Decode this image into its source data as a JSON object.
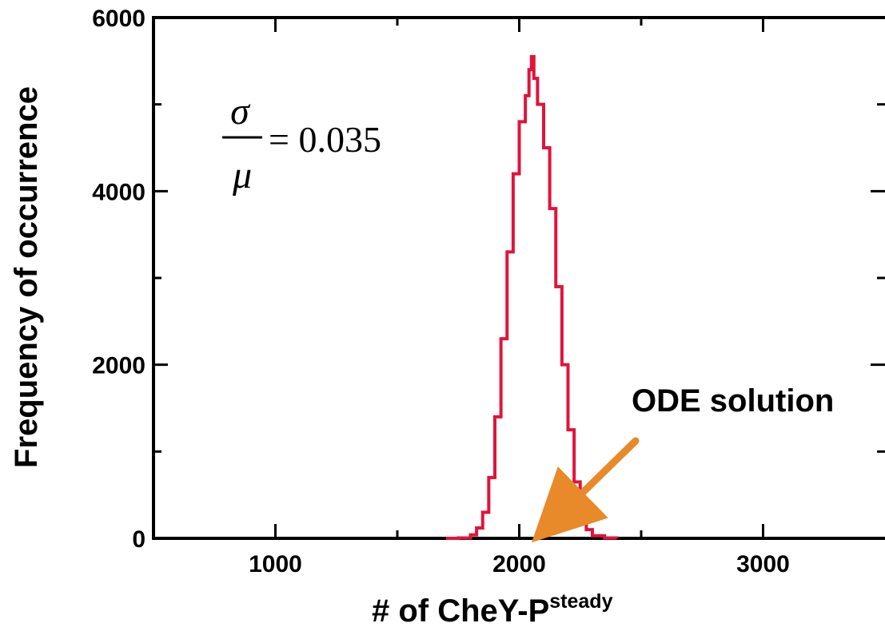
{
  "chart_data": {
    "type": "line",
    "step": true,
    "xlabel": "# of CheY-P",
    "xlabel_superscript": "steady",
    "ylabel": "Frequency of occurrence",
    "xlim": [
      500,
      3500
    ],
    "ylim": [
      0,
      6000
    ],
    "x_ticks": [
      1000,
      2000,
      3000
    ],
    "x_minor_ticks": [
      1500,
      2500
    ],
    "y_ticks": [
      0,
      2000,
      4000,
      6000
    ],
    "y_minor_ticks": [
      1000,
      3000,
      5000
    ],
    "grid": false,
    "series": [
      {
        "color": "#e0143c",
        "x": [
          1700,
          1750,
          1800,
          1825,
          1850,
          1875,
          1900,
          1925,
          1950,
          1975,
          2000,
          2025,
          2040,
          2050,
          2060,
          2075,
          2100,
          2125,
          2150,
          2175,
          2200,
          2225,
          2250,
          2275,
          2300,
          2350,
          2400
        ],
        "values": [
          0,
          5,
          40,
          120,
          300,
          700,
          1400,
          2300,
          3300,
          4200,
          4800,
          5100,
          5400,
          5550,
          5300,
          5000,
          4500,
          3800,
          2900,
          2000,
          1250,
          650,
          280,
          100,
          30,
          5,
          0
        ]
      }
    ],
    "annotations": [
      {
        "text": "ODE solution",
        "arrow_target_x": 2050,
        "arrow_target_y": 0,
        "arrow_color": "#e8892a"
      }
    ],
    "formula": {
      "numerator": "σ",
      "denominator": "μ",
      "equals": "= 0.035"
    }
  }
}
